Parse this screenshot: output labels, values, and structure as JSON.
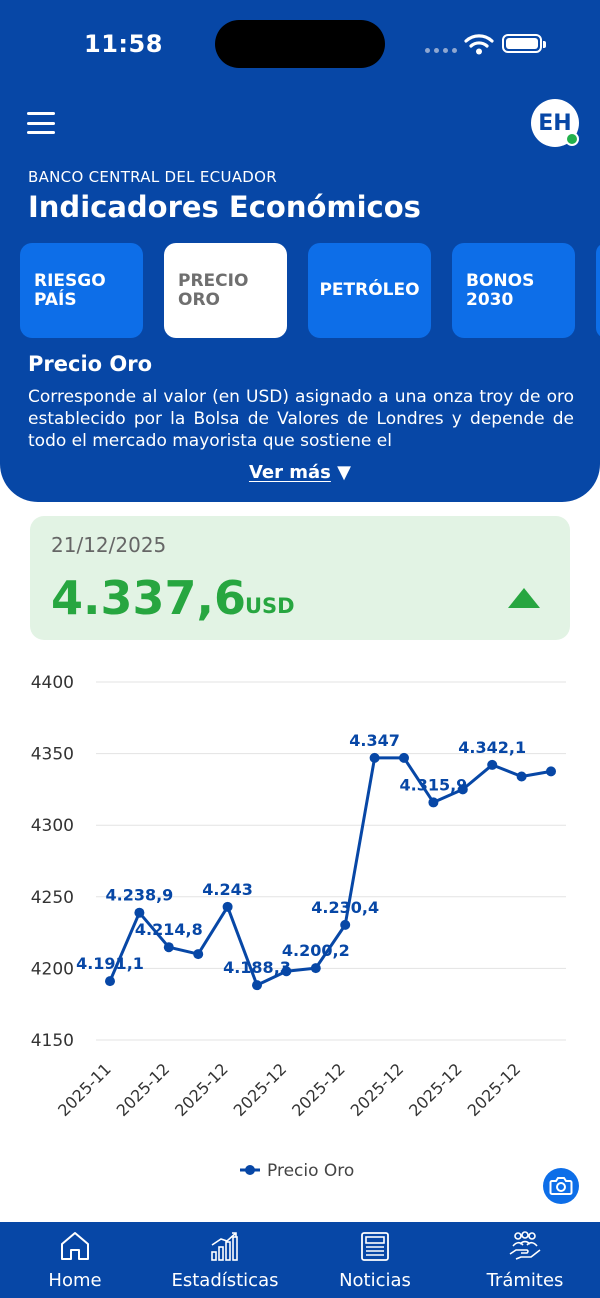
{
  "status_bar": {
    "time": "11:58"
  },
  "header": {
    "avatar_initials": "EH",
    "bank_name": "BANCO CENTRAL DEL ECUADOR",
    "title": "Indicadores Económicos"
  },
  "tabs": [
    {
      "line1": "RIESGO",
      "line2": "PAÍS",
      "active": false
    },
    {
      "line1": "PRECIO",
      "line2": "ORO",
      "active": true
    },
    {
      "line1": "PETRÓLEO",
      "line2": "",
      "active": false
    },
    {
      "line1": "BONOS",
      "line2": "2030",
      "active": false
    }
  ],
  "section": {
    "title": "Precio Oro",
    "description": "Corresponde al valor (en USD) asignado a una onza troy de oro establecido por la Bolsa de Valores de Londres y depende de todo el mercado mayorista que sostiene el",
    "more_label": "Ver más",
    "more_icon": "triangle-down"
  },
  "value_card": {
    "date": "21/12/2025",
    "value": "4.337,6",
    "unit": "USD",
    "trend": "up",
    "color": "#27a640",
    "background": "#e2f3e4"
  },
  "chart_data": {
    "type": "line",
    "y_ticks": [
      "4400",
      "4350",
      "4300",
      "4250",
      "4200",
      "4150"
    ],
    "ylim": [
      4150,
      4400
    ],
    "x_tick_labels": [
      "2025-11",
      "2025-12",
      "2025-12",
      "2025-12",
      "2025-12",
      "2025-12",
      "2025-12",
      "2025-12"
    ],
    "grid": true,
    "legend_position": "bottom",
    "series": [
      {
        "name": "Precio Oro",
        "color": "#0747a6",
        "values": [
          4191.1,
          4238.9,
          4214.8,
          4210,
          4243,
          4188.3,
          4198,
          4200.2,
          4230.4,
          4347,
          4347,
          4315.9,
          4325,
          4342.1,
          4334,
          4337.6
        ],
        "labels": [
          "4.191,1",
          "4.238,9",
          "4.214,8",
          "",
          "4.243",
          "4.188,3",
          "",
          "4.200,2",
          "4.230,4",
          "4.347",
          "",
          "4.315,9",
          "",
          "4.342,1",
          "",
          ""
        ]
      }
    ]
  },
  "camera_icon": "camera-icon",
  "bottom_nav": [
    {
      "label": "Home",
      "icon": "home-icon"
    },
    {
      "label": "Estadísticas",
      "icon": "chart-icon"
    },
    {
      "label": "Noticias",
      "icon": "newspaper-icon"
    },
    {
      "label": "Trámites",
      "icon": "people-icon"
    }
  ],
  "colors": {
    "primary": "#0747a6",
    "accent": "#0d6ee8",
    "positive": "#27a640"
  }
}
